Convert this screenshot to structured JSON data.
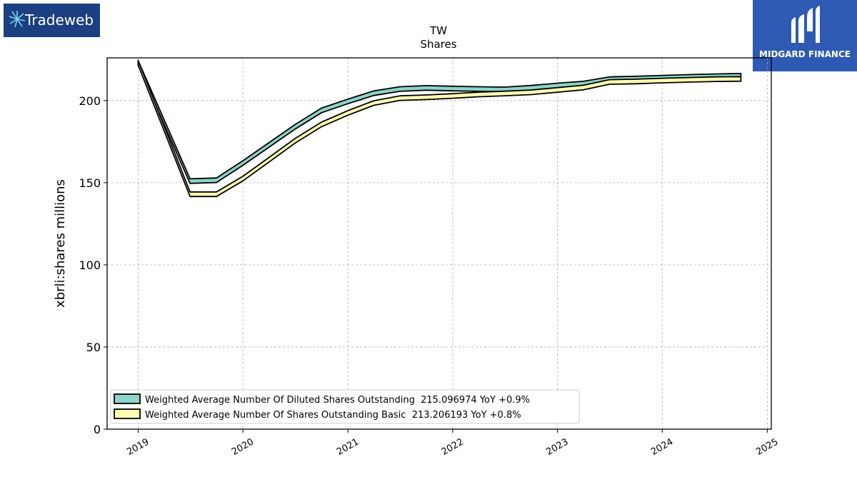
{
  "logos": {
    "left": {
      "text": "Tradeweb",
      "color": "#1b3f80"
    },
    "right": {
      "text": "MIDGARD FINANCE",
      "color": "#2f5ab4"
    }
  },
  "chart_data": {
    "type": "area",
    "title": "TW",
    "subtitle": "Shares",
    "ylabel": "xbrli:shares millions",
    "xlabel": "",
    "ylim": [
      0,
      226
    ],
    "xlim": [
      "2018-09-15",
      "2025-01-15"
    ],
    "grid": true,
    "legend_position": "lower-left",
    "x_ticks": [
      "2019",
      "2020",
      "2021",
      "2022",
      "2023",
      "2024",
      "2025"
    ],
    "y_ticks": [
      0,
      50,
      100,
      150,
      200
    ],
    "x": [
      "2019-01-01",
      "2019-07-01",
      "2019-10-01",
      "2020-01-01",
      "2020-04-01",
      "2020-07-01",
      "2020-10-01",
      "2021-01-01",
      "2021-04-01",
      "2021-07-01",
      "2021-10-01",
      "2022-01-01",
      "2022-04-01",
      "2022-07-01",
      "2022-10-01",
      "2023-01-01",
      "2023-04-01",
      "2023-07-01",
      "2023-10-01",
      "2024-01-01",
      "2024-04-01",
      "2024-07-01",
      "2024-10-01"
    ],
    "series": [
      {
        "name": "Weighted Average Number Of Diluted Shares Outstanding",
        "legend_label": "Weighted Average Number Of Diluted Shares Outstanding  215.096974 YoY +0.9%",
        "color": "#8dd3c7",
        "values": [
          223.0,
          151.0,
          151.5,
          162.0,
          173.0,
          184.0,
          194.0,
          199.5,
          204.5,
          207.0,
          207.7,
          207.3,
          207.0,
          206.8,
          207.8,
          209.2,
          210.3,
          213.0,
          213.4,
          213.9,
          214.4,
          214.8,
          215.1
        ]
      },
      {
        "name": "Weighted Average Number Of Shares Outstanding Basic",
        "legend_label": "Weighted Average Number Of Shares Outstanding Basic  213.206193 YoY +0.8%",
        "color": "#ffffb3",
        "values": [
          223.0,
          143.0,
          143.0,
          152.5,
          164.0,
          175.5,
          185.5,
          192.5,
          198.5,
          201.5,
          202.0,
          202.8,
          203.7,
          204.3,
          205.0,
          206.5,
          207.9,
          211.3,
          211.6,
          212.2,
          212.6,
          213.0,
          213.2
        ]
      }
    ]
  }
}
